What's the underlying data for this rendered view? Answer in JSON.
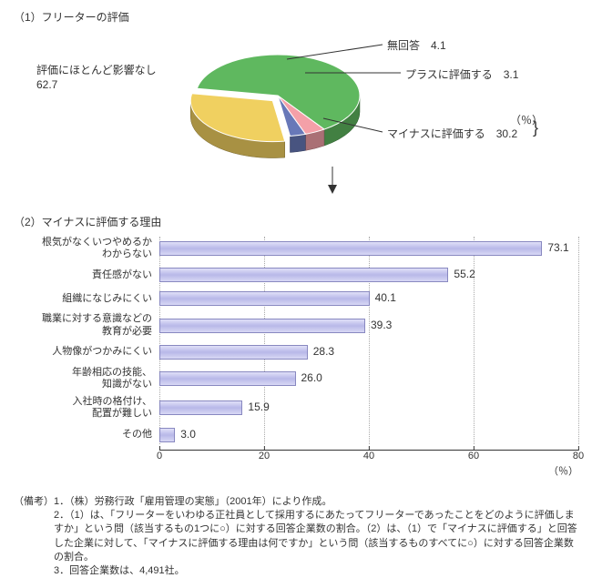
{
  "section1": {
    "title": "（1）フリーターの評価",
    "labels": {
      "no_answer": "無回答　4.1",
      "positive": "プラスに評価する　3.1",
      "negative": "マイナスに評価する　30.2",
      "no_effect_line1": "評価にほとんど影響なし",
      "no_effect_line2": "62.7",
      "percent_unit": "（％）"
    },
    "slices": [
      {
        "name": "no_effect",
        "value": 62.7,
        "color": "#5fb85f"
      },
      {
        "name": "no_answer",
        "value": 4.1,
        "color": "#f4a0a8"
      },
      {
        "name": "positive",
        "value": 3.1,
        "color": "#6878b8"
      },
      {
        "name": "negative",
        "value": 30.2,
        "color": "#f0d060"
      }
    ],
    "pie_radius_x": 90,
    "pie_radius_y": 45,
    "pie_depth": 18
  },
  "section2": {
    "title": "（2）マイナスに評価する理由",
    "x_max": 80,
    "x_ticks": [
      0,
      20,
      40,
      60,
      80
    ],
    "x_unit": "（％）",
    "bar_color_top": "#e0e0f8",
    "bar_color_mid": "#b8b8e8",
    "bar_border": "#8888c0",
    "items": [
      {
        "label": "根気がなくいつやめるか\nわからない",
        "value": 73.1
      },
      {
        "label": "責任感がない",
        "value": 55.2
      },
      {
        "label": "組織になじみにくい",
        "value": 40.1
      },
      {
        "label": "職業に対する意識などの\n教育が必要",
        "value": 39.3
      },
      {
        "label": "人物像がつかみにくい",
        "value": 28.3
      },
      {
        "label": "年齢相応の技能、\n知識がない",
        "value": 26.0
      },
      {
        "label": "入社時の格付け、\n配置が難しい",
        "value": 15.9
      },
      {
        "label": "その他",
        "value": 3.0
      }
    ]
  },
  "notes": {
    "head": "（備考）",
    "lines": [
      "1．（株）労務行政「雇用管理の実態」（2001年）により作成。",
      "2．（1）は、「フリーターをいわゆる正社員として採用するにあたってフリーターであったことをどのように評価しますか」という問（該当するもの1つに○）に対する回答企業数の割合。（2）は、（1）で「マイナスに評価する」と回答した企業に対して、「マイナスに評価する理由は何ですか」という問（該当するものすべてに○）に対する回答企業数の割合。",
      "3．回答企業数は、4,491社。"
    ]
  }
}
